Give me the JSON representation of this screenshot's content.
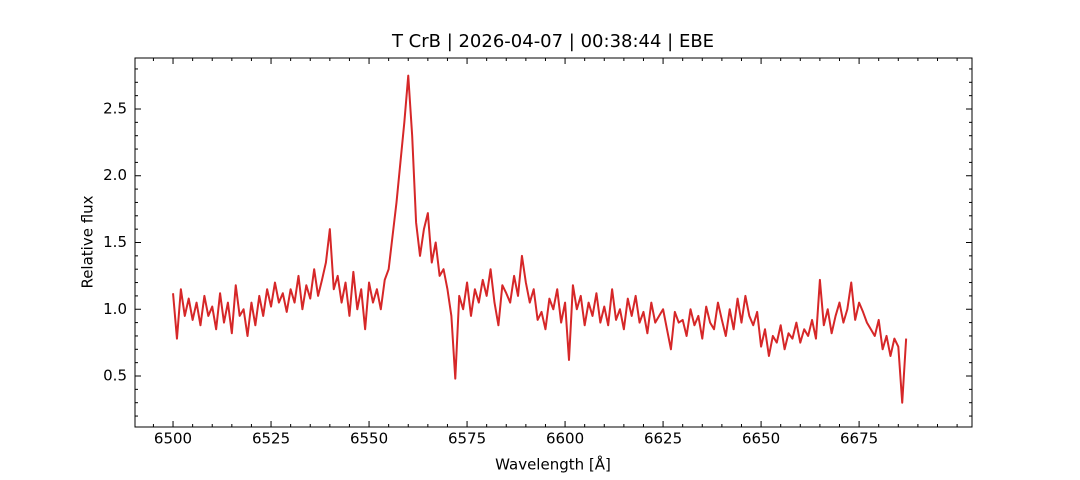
{
  "chart_data": {
    "type": "line",
    "title": "T CrB | 2026-04-07 | 00:38:44 | EBE",
    "x_label": "Wavelength [Å]",
    "y_label": "Relative flux",
    "xlim": [
      6490.3,
      6703.8
    ],
    "ylim": [
      0.118,
      2.882
    ],
    "xticks": [
      6500,
      6525,
      6550,
      6575,
      6600,
      6625,
      6650,
      6675
    ],
    "yticks": [
      0.5,
      {
        "value": 1.0,
        "label": "1.0"
      },
      1.5,
      {
        "value": 2.0,
        "label": "2.0"
      },
      2.5
    ],
    "xminorticks": [
      6495,
      6505,
      6510,
      6515,
      6520,
      6530,
      6535,
      6540,
      6545,
      6555,
      6560,
      6565,
      6570,
      6580,
      6585,
      6590,
      6595,
      6605,
      6610,
      6615,
      6620,
      6630,
      6635,
      6640,
      6645,
      6655,
      6660,
      6665,
      6670,
      6680,
      6685,
      6690,
      6695,
      6700
    ],
    "yminorticks": [
      0.2,
      0.3,
      0.4,
      0.6,
      0.7,
      0.8,
      0.9,
      1.1,
      1.2,
      1.3,
      1.4,
      1.6,
      1.7,
      1.8,
      1.9,
      2.1,
      2.2,
      2.3,
      2.4,
      2.6,
      2.7,
      2.8
    ],
    "series": [
      {
        "color": "#d62728",
        "x": [
          6500,
          6501,
          6502,
          6503,
          6504,
          6505,
          6506,
          6507,
          6508,
          6509,
          6510,
          6511,
          6512,
          6513,
          6514,
          6515,
          6516,
          6517,
          6518,
          6519,
          6520,
          6521,
          6522,
          6523,
          6524,
          6525,
          6526,
          6527,
          6528,
          6529,
          6530,
          6531,
          6532,
          6533,
          6534,
          6535,
          6536,
          6537,
          6538,
          6539,
          6540,
          6541,
          6542,
          6543,
          6544,
          6545,
          6546,
          6547,
          6548,
          6549,
          6550,
          6551,
          6552,
          6553,
          6554,
          6555,
          6556,
          6557,
          6558,
          6559,
          6560,
          6561,
          6562,
          6563,
          6564,
          6565,
          6566,
          6567,
          6568,
          6569,
          6570,
          6571,
          6572,
          6573,
          6574,
          6575,
          6576,
          6577,
          6578,
          6579,
          6580,
          6581,
          6582,
          6583,
          6584,
          6585,
          6586,
          6587,
          6588,
          6589,
          6590,
          6591,
          6592,
          6593,
          6594,
          6595,
          6596,
          6597,
          6598,
          6599,
          6600,
          6601,
          6602,
          6603,
          6604,
          6605,
          6606,
          6607,
          6608,
          6609,
          6610,
          6611,
          6612,
          6613,
          6614,
          6615,
          6616,
          6617,
          6618,
          6619,
          6620,
          6621,
          6622,
          6623,
          6624,
          6625,
          6626,
          6627,
          6628,
          6629,
          6630,
          6631,
          6632,
          6633,
          6634,
          6635,
          6636,
          6637,
          6638,
          6639,
          6640,
          6641,
          6642,
          6643,
          6644,
          6645,
          6646,
          6647,
          6648,
          6649,
          6650,
          6651,
          6652,
          6653,
          6654,
          6655,
          6656,
          6657,
          6658,
          6659,
          6660,
          6661,
          6662,
          6663,
          6664,
          6665,
          6666,
          6667,
          6668,
          6669,
          6670,
          6671,
          6672,
          6673,
          6674,
          6675,
          6676,
          6677,
          6678,
          6679,
          6680,
          6681,
          6682,
          6683,
          6684,
          6685,
          6686,
          6687
        ],
        "values": [
          1.12,
          0.78,
          1.15,
          0.95,
          1.08,
          0.92,
          1.05,
          0.88,
          1.1,
          0.95,
          1.02,
          0.85,
          1.12,
          0.9,
          1.05,
          0.82,
          1.18,
          0.95,
          1.0,
          0.8,
          1.05,
          0.88,
          1.1,
          0.95,
          1.15,
          1.02,
          1.2,
          1.05,
          1.12,
          0.98,
          1.15,
          1.05,
          1.25,
          1.0,
          1.18,
          1.08,
          1.3,
          1.1,
          1.22,
          1.35,
          1.6,
          1.15,
          1.25,
          1.05,
          1.2,
          0.95,
          1.28,
          1.0,
          1.15,
          0.85,
          1.2,
          1.05,
          1.15,
          1.0,
          1.22,
          1.3,
          1.55,
          1.8,
          2.1,
          2.4,
          2.75,
          2.3,
          1.65,
          1.4,
          1.6,
          1.72,
          1.35,
          1.5,
          1.25,
          1.3,
          1.15,
          0.95,
          0.48,
          1.1,
          1.0,
          1.2,
          0.95,
          1.15,
          1.05,
          1.22,
          1.1,
          1.3,
          1.05,
          0.88,
          1.18,
          1.12,
          1.05,
          1.25,
          1.1,
          1.4,
          1.2,
          1.05,
          1.15,
          0.92,
          0.98,
          0.85,
          1.08,
          1.0,
          1.15,
          0.9,
          1.05,
          0.62,
          1.18,
          1.0,
          1.1,
          0.88,
          1.05,
          0.95,
          1.12,
          0.9,
          1.02,
          0.88,
          1.15,
          0.92,
          1.0,
          0.85,
          1.08,
          0.95,
          1.1,
          0.9,
          0.98,
          0.82,
          1.05,
          0.9,
          0.95,
          1.0,
          0.85,
          0.7,
          0.98,
          0.9,
          0.92,
          0.8,
          1.0,
          0.88,
          0.95,
          0.78,
          1.02,
          0.9,
          0.85,
          1.05,
          0.92,
          0.8,
          1.0,
          0.85,
          1.08,
          0.9,
          1.1,
          0.95,
          0.88,
          0.98,
          0.72,
          0.85,
          0.65,
          0.8,
          0.75,
          0.88,
          0.7,
          0.82,
          0.78,
          0.9,
          0.75,
          0.85,
          0.8,
          0.92,
          0.78,
          1.22,
          0.88,
          1.0,
          0.82,
          0.95,
          1.05,
          0.9,
          1.0,
          1.2,
          0.92,
          1.05,
          0.98,
          0.9,
          0.85,
          0.8,
          0.92,
          0.7,
          0.8,
          0.65,
          0.78,
          0.72,
          0.3,
          0.78
        ]
      }
    ]
  }
}
